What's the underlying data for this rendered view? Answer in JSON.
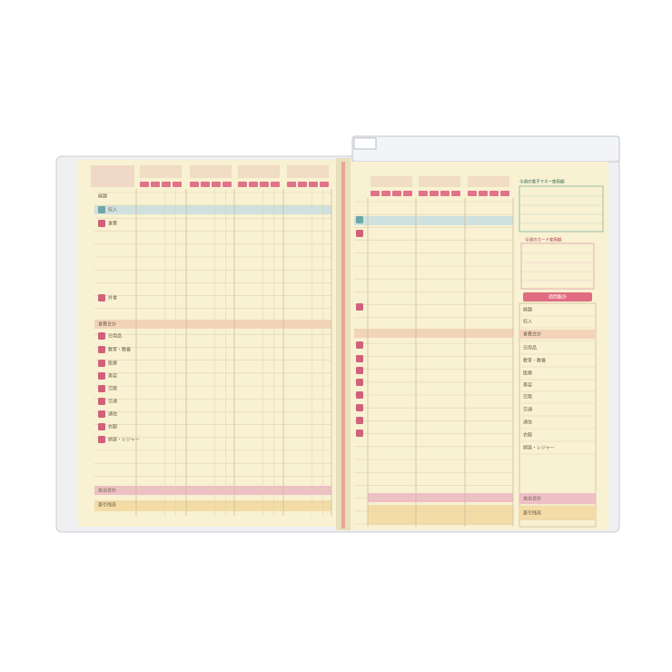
{
  "left_page": {
    "labels": [
      "繰越",
      "収入",
      "食費",
      "外食",
      "食費合計",
      "日用品",
      "教育・教養",
      "医療",
      "美容",
      "交際",
      "交通",
      "通信",
      "衣服",
      "娯楽・レジャー",
      "支出合計",
      "差引残高"
    ]
  },
  "right_page": {
    "electronic_money_title": "今週の電子マネー使用額",
    "card_title": "今週のカード使用額",
    "summary_title": "週間集計",
    "summary_labels": [
      "繰越",
      "収入",
      "食費合計",
      "日用品",
      "教育・教養",
      "医療",
      "美容",
      "交際",
      "交通",
      "通信",
      "衣服",
      "娯楽・レジャー",
      "支出合計",
      "差引残高"
    ]
  }
}
